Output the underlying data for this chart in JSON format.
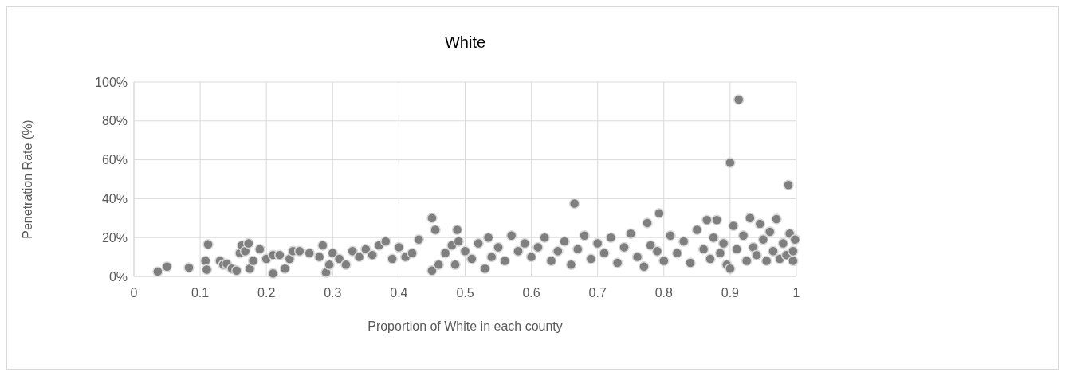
{
  "chart_data": {
    "type": "scatter",
    "title": "White",
    "xlabel": "Proportion of  White in each county",
    "ylabel": "Penetration Rate (%)",
    "xlim": [
      0,
      1
    ],
    "xticks": [
      0,
      0.1,
      0.2,
      0.3,
      0.4,
      0.5,
      0.6,
      0.7,
      0.8,
      0.9,
      1
    ],
    "ylim": [
      0,
      100
    ],
    "yticks": [
      {
        "value": 0,
        "label": "0%"
      },
      {
        "value": 20,
        "label": "20%"
      },
      {
        "value": 40,
        "label": "40%"
      },
      {
        "value": 60,
        "label": "60%"
      },
      {
        "value": 80,
        "label": "80%"
      },
      {
        "value": 100,
        "label": "100%"
      }
    ],
    "grid": true,
    "marker": "circle",
    "series": [
      {
        "color": "#7f7f7f",
        "x": [
          0.036,
          0.05,
          0.083,
          0.108,
          0.112,
          0.11,
          0.13,
          0.135,
          0.14,
          0.148,
          0.155,
          0.16,
          0.163,
          0.168,
          0.173,
          0.175,
          0.18,
          0.19,
          0.2,
          0.21,
          0.21,
          0.22,
          0.228,
          0.235,
          0.24,
          0.25,
          0.265,
          0.28,
          0.285,
          0.29,
          0.295,
          0.3,
          0.31,
          0.32,
          0.33,
          0.34,
          0.35,
          0.36,
          0.37,
          0.38,
          0.39,
          0.4,
          0.41,
          0.42,
          0.43,
          0.45,
          0.455,
          0.45,
          0.46,
          0.47,
          0.48,
          0.485,
          0.488,
          0.49,
          0.5,
          0.51,
          0.52,
          0.53,
          0.535,
          0.54,
          0.55,
          0.56,
          0.57,
          0.58,
          0.59,
          0.6,
          0.61,
          0.62,
          0.63,
          0.64,
          0.65,
          0.66,
          0.665,
          0.67,
          0.68,
          0.69,
          0.7,
          0.71,
          0.72,
          0.73,
          0.74,
          0.75,
          0.76,
          0.77,
          0.775,
          0.78,
          0.79,
          0.793,
          0.8,
          0.81,
          0.82,
          0.83,
          0.84,
          0.85,
          0.86,
          0.865,
          0.87,
          0.875,
          0.88,
          0.885,
          0.89,
          0.895,
          0.9,
          0.9,
          0.905,
          0.91,
          0.913,
          0.92,
          0.925,
          0.93,
          0.935,
          0.94,
          0.945,
          0.95,
          0.955,
          0.96,
          0.965,
          0.97,
          0.975,
          0.98,
          0.985,
          0.988,
          0.99,
          0.995,
          0.998,
          0.995
        ],
        "values": [
          2.5,
          5,
          4.5,
          8,
          16.5,
          3.5,
          8,
          6,
          6.5,
          4,
          3,
          12,
          16,
          13,
          17,
          4,
          8,
          14,
          9,
          1.5,
          11,
          11,
          4,
          9,
          13,
          13,
          12,
          10,
          16,
          2,
          6,
          12,
          9,
          6,
          13,
          10,
          14,
          11,
          16,
          18,
          9,
          15,
          10,
          12,
          19,
          30,
          24,
          3,
          6,
          12,
          16,
          6,
          24,
          18,
          13,
          9,
          17,
          4,
          20,
          10,
          15,
          8,
          21,
          13,
          17,
          10,
          15,
          20,
          8,
          13,
          18,
          6,
          37.5,
          14,
          21,
          9,
          17,
          12,
          20,
          7,
          15,
          22,
          10,
          5,
          27.5,
          16,
          13,
          32.5,
          8,
          21,
          12,
          18,
          7,
          24,
          14,
          29,
          9,
          20,
          29,
          12,
          17,
          6,
          58.5,
          4,
          26,
          14,
          91,
          21,
          8,
          30,
          15,
          11,
          27,
          19,
          8,
          23,
          13,
          29.5,
          9,
          17,
          11,
          47,
          22,
          8,
          19,
          13
        ]
      }
    ]
  }
}
